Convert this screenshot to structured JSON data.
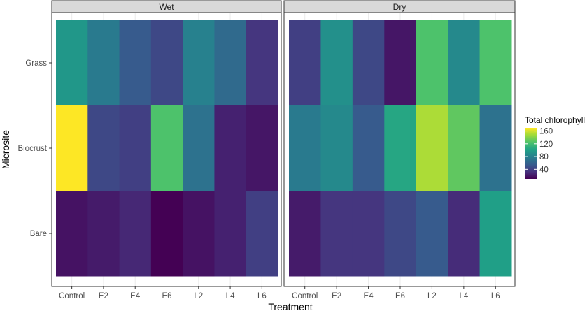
{
  "chart_data": {
    "type": "heatmap",
    "facets": [
      "Wet",
      "Dry"
    ],
    "x_categories": [
      "Control",
      "E2",
      "E4",
      "E6",
      "L2",
      "L4",
      "L6"
    ],
    "y_categories": [
      "Grass",
      "Biocrust",
      "Bare"
    ],
    "xlabel": "Treatment",
    "ylabel": "Microsite",
    "legend": {
      "title": "Total chlorophyll",
      "ticks": [
        160,
        120,
        80,
        40
      ],
      "min": 10,
      "max": 170,
      "placement": "right"
    },
    "grid": true,
    "values": {
      "Wet": {
        "Grass": [
          95,
          75,
          55,
          45,
          80,
          65,
          35
        ],
        "Biocrust": [
          170,
          45,
          40,
          125,
          70,
          25,
          20
        ],
        "Bare": [
          18,
          22,
          28,
          10,
          18,
          25,
          40
        ]
      },
      "Dry": {
        "Grass": [
          40,
          90,
          45,
          20,
          125,
          85,
          125
        ],
        "Biocrust": [
          75,
          85,
          55,
          105,
          150,
          130,
          70
        ],
        "Bare": [
          22,
          35,
          35,
          45,
          55,
          30,
          100
        ]
      }
    }
  }
}
